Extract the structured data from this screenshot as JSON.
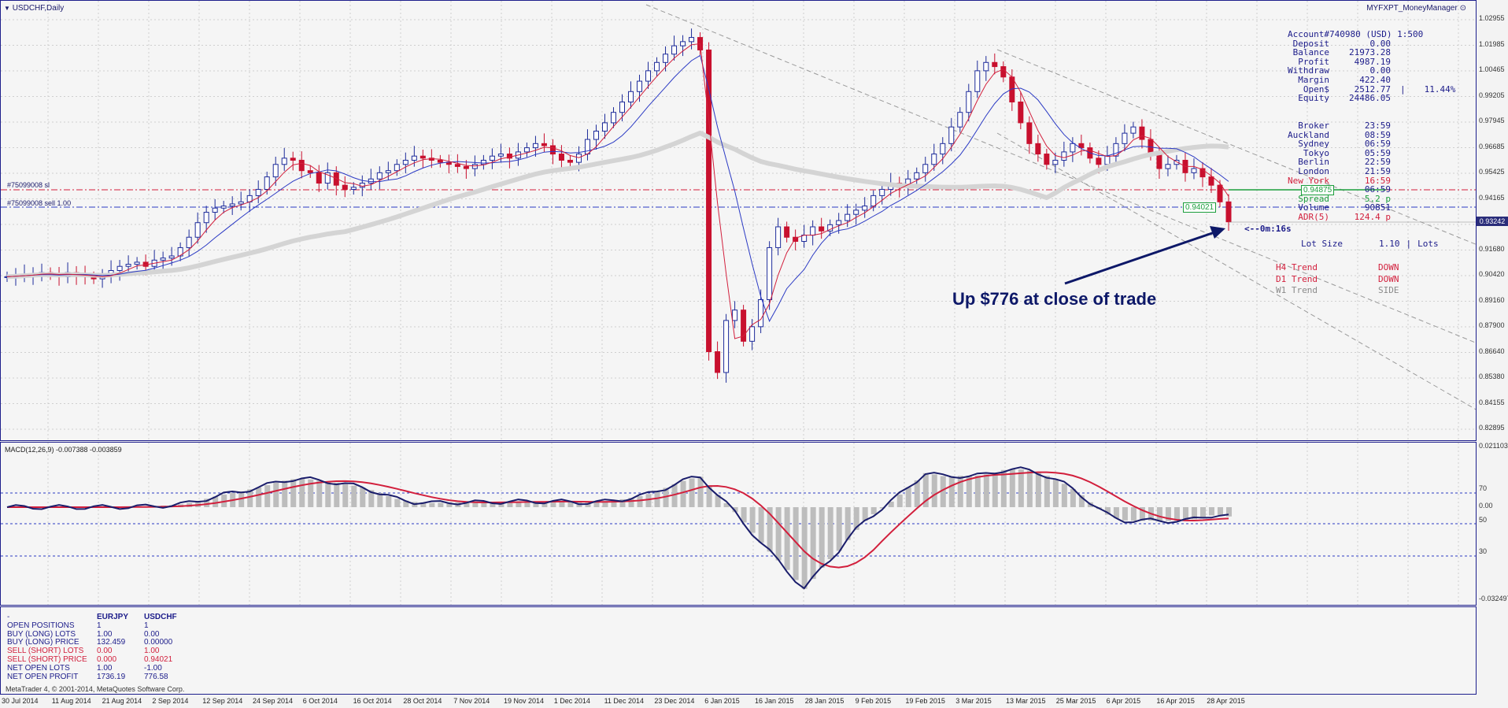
{
  "window": {
    "title": "USDCHF,Daily",
    "indicator_name": "MYFXPT_MoneyManager",
    "close_icon": "close-circle-icon"
  },
  "order_lines": [
    {
      "label": "#75099008 sl",
      "color": "#d21f3c"
    },
    {
      "label": "#75099008 sell 1.00",
      "color": "#2b3ac4"
    }
  ],
  "account": {
    "rows": [
      {
        "label": "Account#",
        "value": "740980 (USD) 1:500"
      },
      {
        "label": "Deposit",
        "value": "0.00"
      },
      {
        "label": "Balance",
        "value": "21973.28"
      },
      {
        "label": "Profit",
        "value": "4987.19"
      },
      {
        "label": "Withdraw",
        "value": "0.00"
      },
      {
        "label": "Margin",
        "value": "422.40"
      },
      {
        "label": "Open$",
        "value": "2512.77",
        "extra": "|",
        "pct": "11.44%"
      },
      {
        "label": "Equity",
        "value": "24486.05"
      }
    ],
    "clocks": [
      {
        "label": "Broker",
        "value": "23:59"
      },
      {
        "label": "Auckland",
        "value": "08:59"
      },
      {
        "label": "Sydney",
        "value": "06:59"
      },
      {
        "label": "Tokyo",
        "value": "05:59"
      },
      {
        "label": "Berlin",
        "value": "22:59"
      },
      {
        "label": "London",
        "value": "21:59"
      },
      {
        "label": "New York",
        "value": "16:59"
      },
      {
        "label": "Local",
        "value": "06:59"
      },
      {
        "label": "Spread",
        "value": "5.2 p"
      },
      {
        "label": "Volume",
        "value": "90851"
      },
      {
        "label": "ADR(5)",
        "value": "124.4 p"
      }
    ],
    "lot_size_label": "Lot Size",
    "lot_size_value": "1.10",
    "lot_size_sep": "|",
    "lot_size_unit": "Lots",
    "trends": [
      {
        "label": "H4 Trend",
        "value": "DOWN",
        "color": "#d21f3c"
      },
      {
        "label": "D1 Trend",
        "value": "DOWN",
        "color": "#d21f3c"
      },
      {
        "label": "W1 Trend",
        "value": "SIDE",
        "color": "#8a8a8a"
      }
    ]
  },
  "price_tags": {
    "sl": "0.94875",
    "entry": "0.94021",
    "current": "0.93242"
  },
  "timer": "<--0m:16s",
  "annotation": "Up $776 at close of trade",
  "price_axis": [
    "1.02955",
    "1.01985",
    "1.00465",
    "0.99205",
    "0.97945",
    "0.96685",
    "0.95425",
    "0.94165",
    "0.92940",
    "0.91680",
    "0.90420",
    "0.89160",
    "0.87900",
    "0.86640",
    "0.85380",
    "0.84155",
    "0.82895"
  ],
  "macd": {
    "title": "MACD(12,26,9) -0.007388 -0.003859",
    "axis": [
      "0.021103",
      "70",
      "0.00",
      "50",
      "30",
      "-0.032497"
    ]
  },
  "stats": {
    "header": [
      "-",
      "EURJPY",
      "USDCHF"
    ],
    "rows": [
      {
        "label": "OPEN POSITIONS",
        "a": "1",
        "b": "1",
        "color": "#1c1c8a"
      },
      {
        "label": "BUY (LONG) LOTS",
        "a": "1.00",
        "b": "0.00",
        "color": "#1c1c8a"
      },
      {
        "label": "BUY (LONG) PRICE",
        "a": "132.459",
        "b": "0.00000",
        "color": "#1c1c8a"
      },
      {
        "label": "SELL (SHORT) LOTS",
        "a": "0.00",
        "b": "1.00",
        "color": "#d21f3c"
      },
      {
        "label": "SELL (SHORT) PRICE",
        "a": "0.000",
        "b": "0.94021",
        "color": "#d21f3c"
      },
      {
        "label": "NET OPEN LOTS",
        "a": "1.00",
        "b": "-1.00",
        "color": "#1c1c8a"
      },
      {
        "label": "NET OPEN PROFIT",
        "a": "1736.19",
        "b": "776.58",
        "color": "#1c1c8a"
      }
    ],
    "copyright": "MetaTrader 4, © 2001-2014, MetaQuotes Software Corp."
  },
  "x_axis": [
    "30 Jul 2014",
    "11 Aug 2014",
    "21 Aug 2014",
    "2 Sep 2014",
    "12 Sep 2014",
    "24 Sep 2014",
    "6 Oct 2014",
    "16 Oct 2014",
    "28 Oct 2014",
    "7 Nov 2014",
    "19 Nov 2014",
    "1 Dec 2014",
    "11 Dec 2014",
    "23 Dec 2014",
    "6 Jan 2015",
    "16 Jan 2015",
    "28 Jan 2015",
    "9 Feb 2015",
    "19 Feb 2015",
    "3 Mar 2015",
    "13 Mar 2015",
    "25 Mar 2015",
    "6 Apr 2015",
    "16 Apr 2015",
    "28 Apr 2015"
  ],
  "chart_data": {
    "type": "candlestick",
    "symbol": "USDCHF",
    "timeframe": "Daily",
    "ylim": [
      0.82895,
      1.02955
    ],
    "x_range": [
      "30 Jul 2014",
      "28 Apr 2015"
    ],
    "close_series": [
      0.906,
      0.9065,
      0.907,
      0.9075,
      0.908,
      0.907,
      0.906,
      0.908,
      0.907,
      0.906,
      0.905,
      0.906,
      0.909,
      0.911,
      0.912,
      0.913,
      0.911,
      0.914,
      0.915,
      0.916,
      0.92,
      0.925,
      0.932,
      0.937,
      0.939,
      0.94,
      0.941,
      0.942,
      0.945,
      0.948,
      0.954,
      0.96,
      0.963,
      0.962,
      0.957,
      0.956,
      0.951,
      0.956,
      0.95,
      0.948,
      0.949,
      0.951,
      0.953,
      0.956,
      0.957,
      0.96,
      0.962,
      0.964,
      0.963,
      0.962,
      0.961,
      0.96,
      0.959,
      0.958,
      0.96,
      0.962,
      0.964,
      0.965,
      0.963,
      0.966,
      0.968,
      0.97,
      0.969,
      0.965,
      0.962,
      0.961,
      0.965,
      0.972,
      0.976,
      0.98,
      0.985,
      0.99,
      0.995,
      1.0,
      1.005,
      1.009,
      1.013,
      1.017,
      1.019,
      1.021,
      1.015,
      0.87,
      0.86,
      0.885,
      0.89,
      0.875,
      0.882,
      0.895,
      0.92,
      0.93,
      0.925,
      0.923,
      0.926,
      0.93,
      0.928,
      0.931,
      0.933,
      0.936,
      0.938,
      0.94,
      0.945,
      0.948,
      0.951,
      0.949,
      0.953,
      0.956,
      0.96,
      0.965,
      0.97,
      0.978,
      0.985,
      0.995,
      1.005,
      1.009,
      1.007,
      1.002,
      0.99,
      0.98,
      0.97,
      0.965,
      0.96,
      0.962,
      0.966,
      0.97,
      0.968,
      0.963,
      0.96,
      0.964,
      0.97,
      0.975,
      0.978,
      0.972,
      0.965,
      0.958,
      0.96,
      0.962,
      0.956,
      0.958,
      0.954,
      0.95,
      0.942,
      0.9324
    ],
    "sl_price": 0.94875,
    "entry_price": 0.94021,
    "current_price": 0.93242,
    "macd_histogram_range": [
      -0.032497,
      0.021103
    ]
  }
}
